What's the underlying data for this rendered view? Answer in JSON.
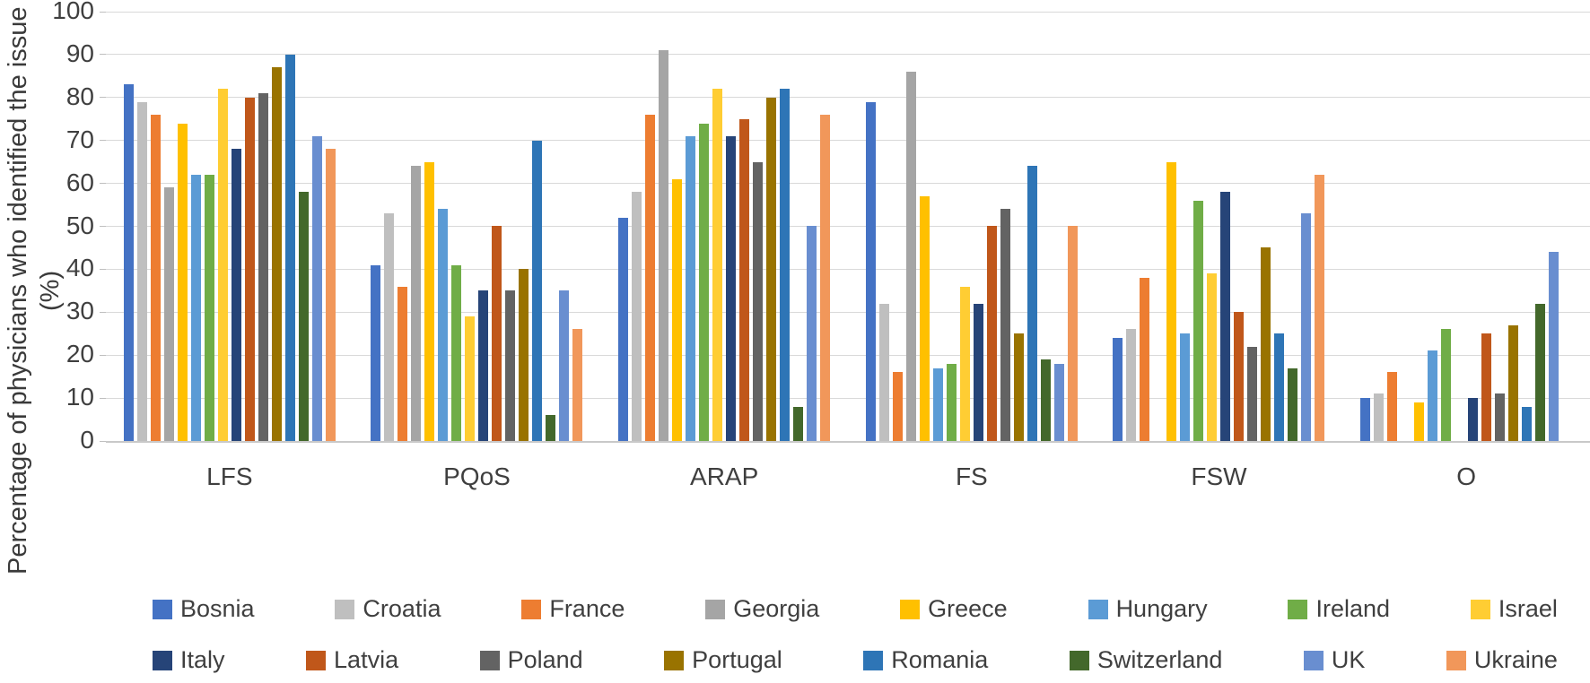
{
  "chart_data": {
    "type": "bar",
    "title": "",
    "xlabel": "",
    "ylabel": "Percentage of physicians who identified the issue (%)",
    "ylim": [
      0,
      100
    ],
    "yticks": [
      0,
      10,
      20,
      30,
      40,
      50,
      60,
      70,
      80,
      90,
      100
    ],
    "grid": true,
    "legend_position": "bottom",
    "legend_rows": 2,
    "categories": [
      "LFS",
      "PQoS",
      "ARAP",
      "FS",
      "FSW",
      "O"
    ],
    "series": [
      {
        "name": "Bosnia",
        "color": "#4472C4",
        "values": [
          83,
          41,
          52,
          79,
          24,
          10
        ]
      },
      {
        "name": "Croatia",
        "color": "#BFBFBF",
        "values": [
          79,
          53,
          58,
          32,
          26,
          11
        ]
      },
      {
        "name": "France",
        "color": "#ED7D31",
        "values": [
          76,
          36,
          76,
          16,
          38,
          16
        ]
      },
      {
        "name": "Georgia",
        "color": "#A5A5A5",
        "values": [
          59,
          64,
          91,
          86,
          null,
          null
        ]
      },
      {
        "name": "Greece",
        "color": "#FFC000",
        "values": [
          74,
          65,
          61,
          57,
          65,
          9
        ]
      },
      {
        "name": "Hungary",
        "color": "#5B9BD5",
        "values": [
          62,
          54,
          71,
          17,
          25,
          21
        ]
      },
      {
        "name": "Ireland",
        "color": "#70AD47",
        "values": [
          62,
          41,
          74,
          18,
          56,
          26
        ]
      },
      {
        "name": "Israel",
        "color": "#FFCD33",
        "values": [
          82,
          29,
          82,
          36,
          39,
          null
        ]
      },
      {
        "name": "Italy",
        "color": "#264478",
        "values": [
          68,
          35,
          71,
          32,
          58,
          10
        ]
      },
      {
        "name": "Latvia",
        "color": "#C0571A",
        "values": [
          80,
          50,
          75,
          50,
          30,
          25
        ]
      },
      {
        "name": "Poland",
        "color": "#636363",
        "values": [
          81,
          35,
          65,
          54,
          22,
          11
        ]
      },
      {
        "name": "Portugal",
        "color": "#997300",
        "values": [
          87,
          40,
          80,
          25,
          45,
          27
        ]
      },
      {
        "name": "Romania",
        "color": "#2E75B6",
        "values": [
          90,
          70,
          82,
          64,
          25,
          8
        ]
      },
      {
        "name": "Switzerland",
        "color": "#43682B",
        "values": [
          58,
          6,
          8,
          19,
          17,
          32
        ]
      },
      {
        "name": "UK",
        "color": "#698ED0",
        "values": [
          71,
          35,
          50,
          18,
          53,
          44
        ]
      },
      {
        "name": "Ukraine",
        "color": "#F1975A",
        "values": [
          68,
          26,
          76,
          50,
          62,
          null
        ]
      }
    ]
  }
}
